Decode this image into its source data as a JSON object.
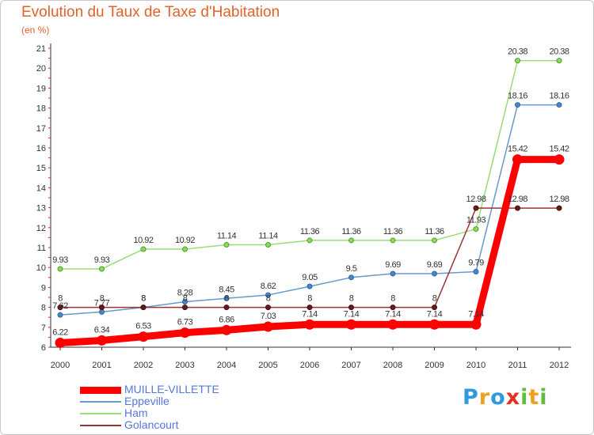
{
  "chart_data": {
    "type": "line",
    "title": "Evolution du Taux de Taxe d'Habitation",
    "subtitle": "(en %)",
    "x": [
      "2000",
      "2001",
      "2002",
      "2003",
      "2004",
      "2005",
      "2006",
      "2007",
      "2008",
      "2009",
      "2010",
      "2011",
      "2012"
    ],
    "ylim": [
      6,
      21
    ],
    "yticks": [
      6,
      7,
      8,
      9,
      10,
      11,
      12,
      13,
      14,
      15,
      16,
      17,
      18,
      19,
      20,
      21
    ],
    "grid": false,
    "legend_position": "bottom-left",
    "series": [
      {
        "name": "MUILLE-VILLETTE",
        "color": "#ff0000",
        "values": [
          6.22,
          6.34,
          6.53,
          6.73,
          6.86,
          7.03,
          7.14,
          7.14,
          7.14,
          7.14,
          7.14,
          15.42,
          15.42
        ],
        "labels": [
          "6.22",
          "6.34",
          "6.53",
          "6.73",
          "6.86",
          "7.03",
          "7.14",
          "7.14",
          "7.14",
          "7.14",
          "7.14",
          "15.42",
          "15.42"
        ]
      },
      {
        "name": "Eppeville",
        "color": "#6699cc",
        "values": [
          7.62,
          7.77,
          8,
          8.28,
          8.45,
          8.62,
          9.05,
          9.5,
          9.69,
          9.69,
          9.79,
          18.16,
          18.16
        ],
        "labels": [
          "7.62",
          "7.77",
          "8",
          "8.28",
          "8.45",
          "8.62",
          "9.05",
          "9.5",
          "9.69",
          "9.69",
          "9.79",
          "18.16",
          "18.16"
        ]
      },
      {
        "name": "Ham",
        "color": "#99dd77",
        "values": [
          9.93,
          9.93,
          10.92,
          10.92,
          11.14,
          11.14,
          11.36,
          11.36,
          11.36,
          11.36,
          11.93,
          20.38,
          20.38
        ],
        "labels": [
          "9.93",
          "9.93",
          "10.92",
          "10.92",
          "11.14",
          "11.14",
          "11.36",
          "11.36",
          "11.36",
          "11.36",
          "11.93",
          "20.38",
          "20.38"
        ]
      },
      {
        "name": "Golancourt",
        "color": "#993333",
        "values": [
          8,
          8,
          8,
          8,
          8,
          8,
          8,
          8,
          8,
          8,
          12.98,
          12.98,
          12.98
        ],
        "labels": [
          "8",
          "8",
          "8",
          "8",
          "8",
          "8",
          "8",
          "8",
          "8",
          "8",
          "12.98",
          "12.98",
          "12.98"
        ]
      }
    ]
  },
  "brand": {
    "text": "Proxiti",
    "letters": [
      "P",
      "r",
      "o",
      "x",
      "i",
      "t",
      "i"
    ],
    "colors": [
      "#3399dd",
      "#f0a020",
      "#3399dd",
      "#e83020",
      "#60bb40",
      "#f0a020",
      "#60bb40"
    ]
  }
}
